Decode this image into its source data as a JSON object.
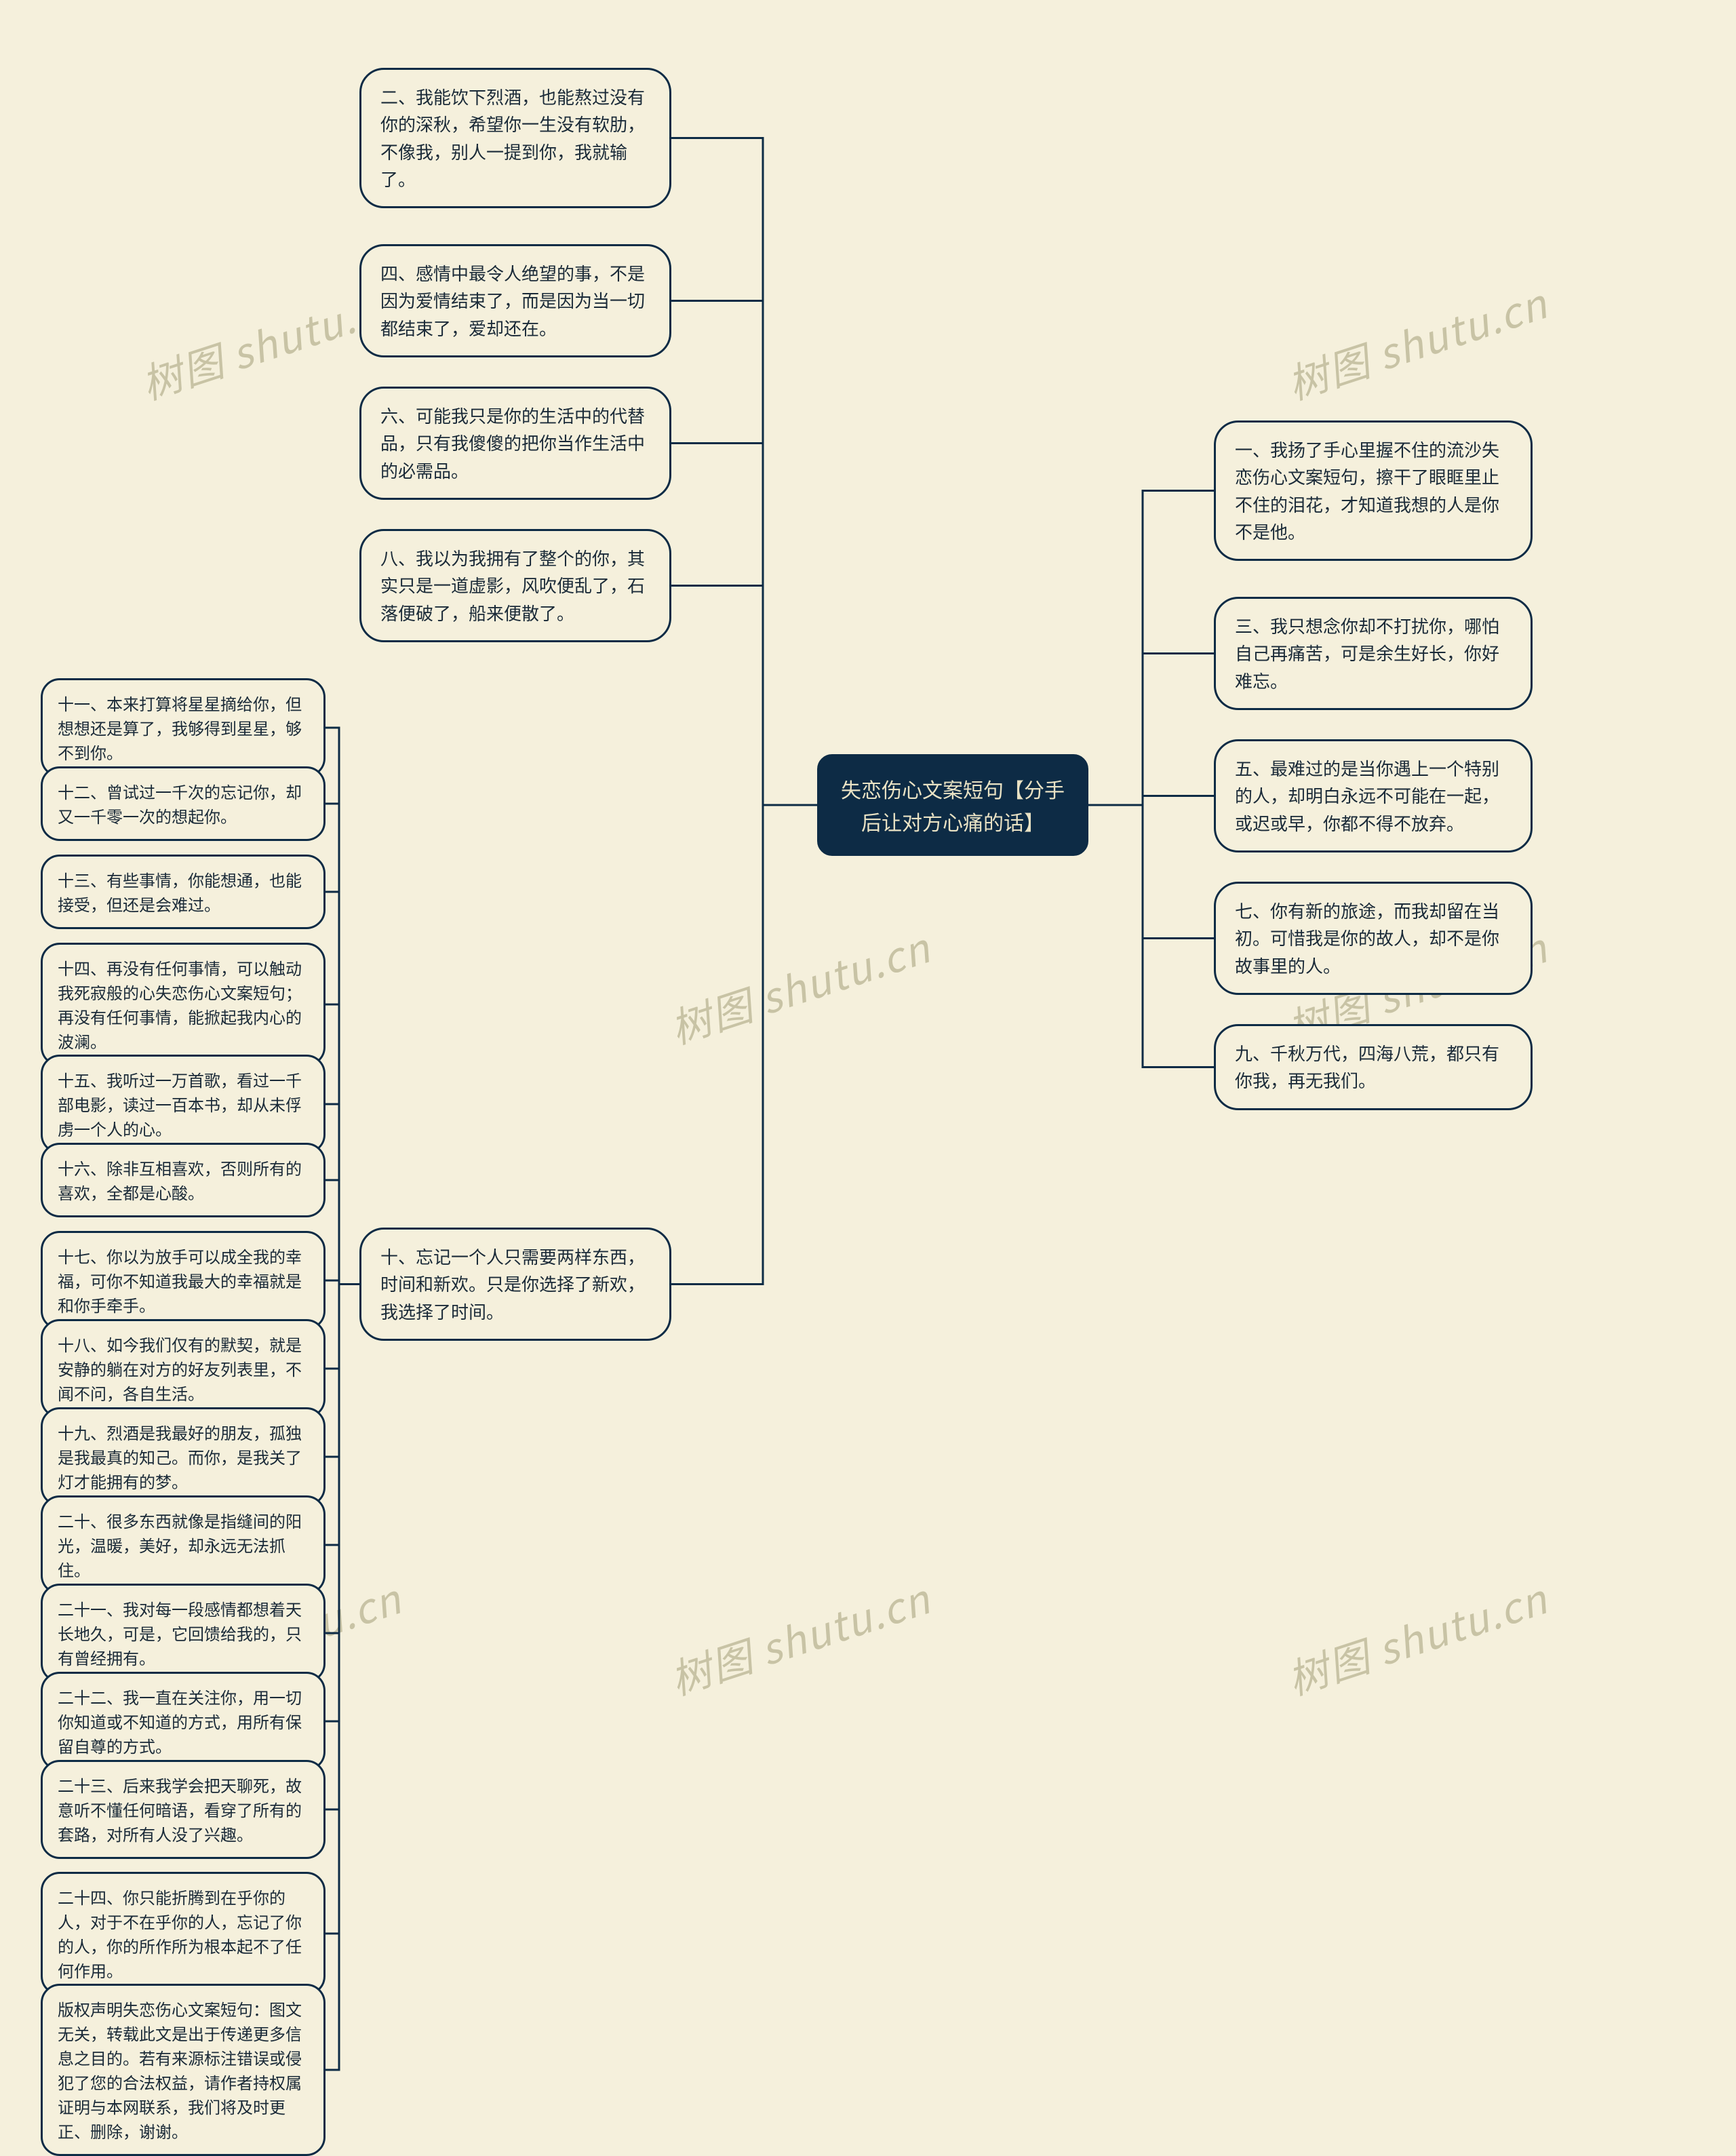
{
  "colors": {
    "bg": "#f5f0dc",
    "node_border": "#0d2b45",
    "center_bg": "#0d2b45",
    "center_text": "#e9e2c4",
    "text": "#1a2a38",
    "watermark": "#bdb998"
  },
  "watermark_text": "树图 shutu.cn",
  "center": {
    "text": "失恋伤心文案短句【分手后让对方心痛的话】"
  },
  "left_upper": [
    "二、我能饮下烈酒，也能熬过没有你的深秋，希望你一生没有软肋，不像我，别人一提到你，我就输了。",
    "四、感情中最令人绝望的事，不是因为爱情结束了，而是因为当一切都结束了，爱却还在。",
    "六、可能我只是你的生活中的代替品，只有我傻傻的把你当作生活中的必需品。",
    "八、我以为我拥有了整个的你，其实只是一道虚影，风吹便乱了，石落便破了，船来便散了。"
  ],
  "right": [
    "一、我扬了手心里握不住的流沙失恋伤心文案短句，擦干了眼眶里止不住的泪花，才知道我想的人是你不是他。",
    "三、我只想念你却不打扰你，哪怕自己再痛苦，可是余生好长，你好难忘。",
    "五、最难过的是当你遇上一个特别的人，却明白永远不可能在一起，或迟或早，你都不得不放弃。",
    "七、你有新的旅途，而我却留在当初。可惜我是你的故人，却不是你故事里的人。",
    "九、千秋万代，四海八荒，都只有你我，再无我们。"
  ],
  "left_main_parent": "十、忘记一个人只需要两样东西，时间和新欢。只是你选择了新欢，我选择了时间。",
  "left_children": [
    "十一、本来打算将星星摘给你，但想想还是算了，我够得到星星，够不到你。",
    "十二、曾试过一千次的忘记你，却又一千零一次的想起你。",
    "十三、有些事情，你能想通，也能接受，但还是会难过。",
    "十四、再没有任何事情，可以触动我死寂般的心失恋伤心文案短句；再没有任何事情，能掀起我内心的波澜。",
    "十五、我听过一万首歌，看过一千部电影，读过一百本书，却从未俘虏一个人的心。",
    "十六、除非互相喜欢，否则所有的喜欢，全都是心酸。",
    "十七、你以为放手可以成全我的幸福，可你不知道我最大的幸福就是和你手牵手。",
    "十八、如今我们仅有的默契，就是安静的躺在对方的好友列表里，不闻不问，各自生活。",
    "十九、烈酒是我最好的朋友，孤独是我最真的知己。而你，是我关了灯才能拥有的梦。",
    "二十、很多东西就像是指缝间的阳光，温暖，美好，却永远无法抓住。",
    "二十一、我对每一段感情都想着天长地久，可是，它回馈给我的，只有曾经拥有。",
    "二十二、我一直在关注你，用一切你知道或不知道的方式，用所有保留自尊的方式。",
    "二十三、后来我学会把天聊死，故意听不懂任何暗语，看穿了所有的套路，对所有人没了兴趣。",
    "二十四、你只能折腾到在乎你的人，对于不在乎你的人，忘记了你的人，你的所作所为根本起不了任何作用。",
    "版权声明失恋伤心文案短句：图文无关，转载此文是出于传递更多信息之目的。若有来源标注错误或侵犯了您的合法权益，请作者持权属证明与本网联系，我们将及时更正、删除，谢谢。"
  ]
}
